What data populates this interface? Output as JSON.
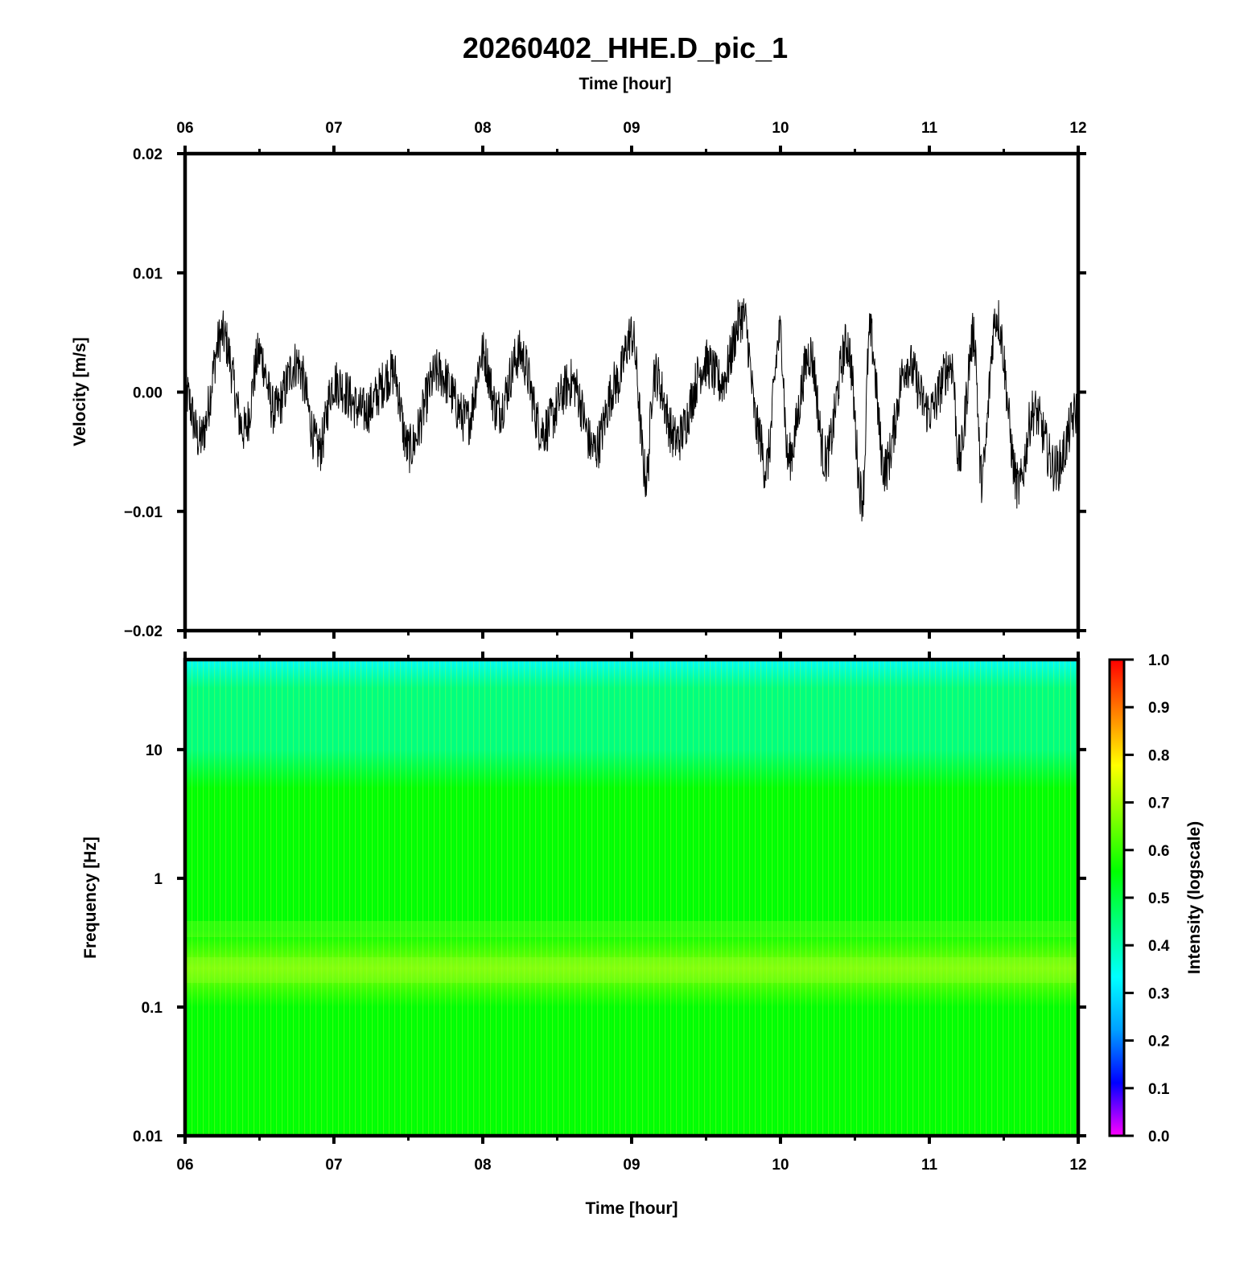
{
  "figure": {
    "title": "20260402_HHE.D_pic_1"
  },
  "chart_data": [
    {
      "type": "line",
      "panel": "velocity",
      "title": "20260402_HHE.D_pic_1",
      "xlabel_top": "Time [hour]",
      "ylabel": "Velocity [m/s]",
      "xlim": [
        6,
        12
      ],
      "ylim": [
        -0.02,
        0.02
      ],
      "x_ticks": [
        "06",
        "07",
        "08",
        "09",
        "10",
        "11",
        "12"
      ],
      "y_ticks": [
        "0.02",
        "0.01",
        "0.00",
        "−0.01",
        "−0.02"
      ],
      "line_color": "#000000",
      "series": [
        {
          "x": [
            6.0,
            6.1,
            6.25,
            6.4,
            6.5,
            6.6,
            6.75,
            6.9,
            7.0,
            7.2,
            7.4,
            7.5,
            7.7,
            7.9,
            8.0,
            8.1,
            8.25,
            8.4,
            8.6,
            8.75,
            8.9,
            9.0,
            9.1,
            9.15,
            9.3,
            9.5,
            9.6,
            9.75,
            9.85,
            9.9,
            10.0,
            10.05,
            10.2,
            10.3,
            10.45,
            10.55,
            10.6,
            10.7,
            10.85,
            11.0,
            11.15,
            11.2,
            11.3,
            11.35,
            11.45,
            11.6,
            11.7,
            11.85,
            12.0
          ],
          "y": [
            0.0,
            -0.005,
            0.006,
            -0.004,
            0.004,
            -0.002,
            0.003,
            -0.006,
            0.001,
            -0.002,
            0.002,
            -0.006,
            0.002,
            -0.003,
            0.004,
            -0.002,
            0.004,
            -0.004,
            0.001,
            -0.006,
            0.001,
            0.006,
            -0.009,
            0.002,
            -0.005,
            0.003,
            0.001,
            0.008,
            -0.004,
            -0.008,
            0.006,
            -0.007,
            0.004,
            -0.007,
            0.005,
            -0.011,
            0.006,
            -0.008,
            0.003,
            -0.002,
            0.003,
            -0.007,
            0.006,
            -0.009,
            0.008,
            -0.01,
            -0.002,
            -0.008,
            -0.002
          ]
        }
      ]
    },
    {
      "type": "heatmap",
      "panel": "spectrogram",
      "xlabel": "Time [hour]",
      "ylabel": "Frequency [Hz]",
      "xlim": [
        6,
        12
      ],
      "yscale": "log",
      "ylim": [
        0.01,
        50
      ],
      "x_ticks": [
        "06",
        "07",
        "08",
        "09",
        "10",
        "11",
        "12"
      ],
      "y_ticks": [
        "10",
        "1",
        "0.1",
        "0.01"
      ],
      "intensity_profile": {
        "frequency": [
          0.01,
          0.1,
          0.2,
          0.4,
          1,
          5,
          10,
          20,
          30,
          50
        ],
        "intensity": [
          0.6,
          0.58,
          0.62,
          0.6,
          0.55,
          0.5,
          0.48,
          0.43,
          0.4,
          0.32
        ]
      },
      "colorbar": {
        "label": "Intensity (logscale)",
        "ticks": [
          "1.0",
          "0.9",
          "0.8",
          "0.7",
          "0.6",
          "0.5",
          "0.4",
          "0.3",
          "0.2",
          "0.1",
          "0.0"
        ],
        "range": [
          0,
          1
        ],
        "colormap": [
          "#ff00ff",
          "#0000ff",
          "#00a0ff",
          "#00ffff",
          "#00ff80",
          "#00ff00",
          "#80ff00",
          "#ffff00",
          "#ff8000",
          "#ff0000"
        ]
      }
    }
  ]
}
